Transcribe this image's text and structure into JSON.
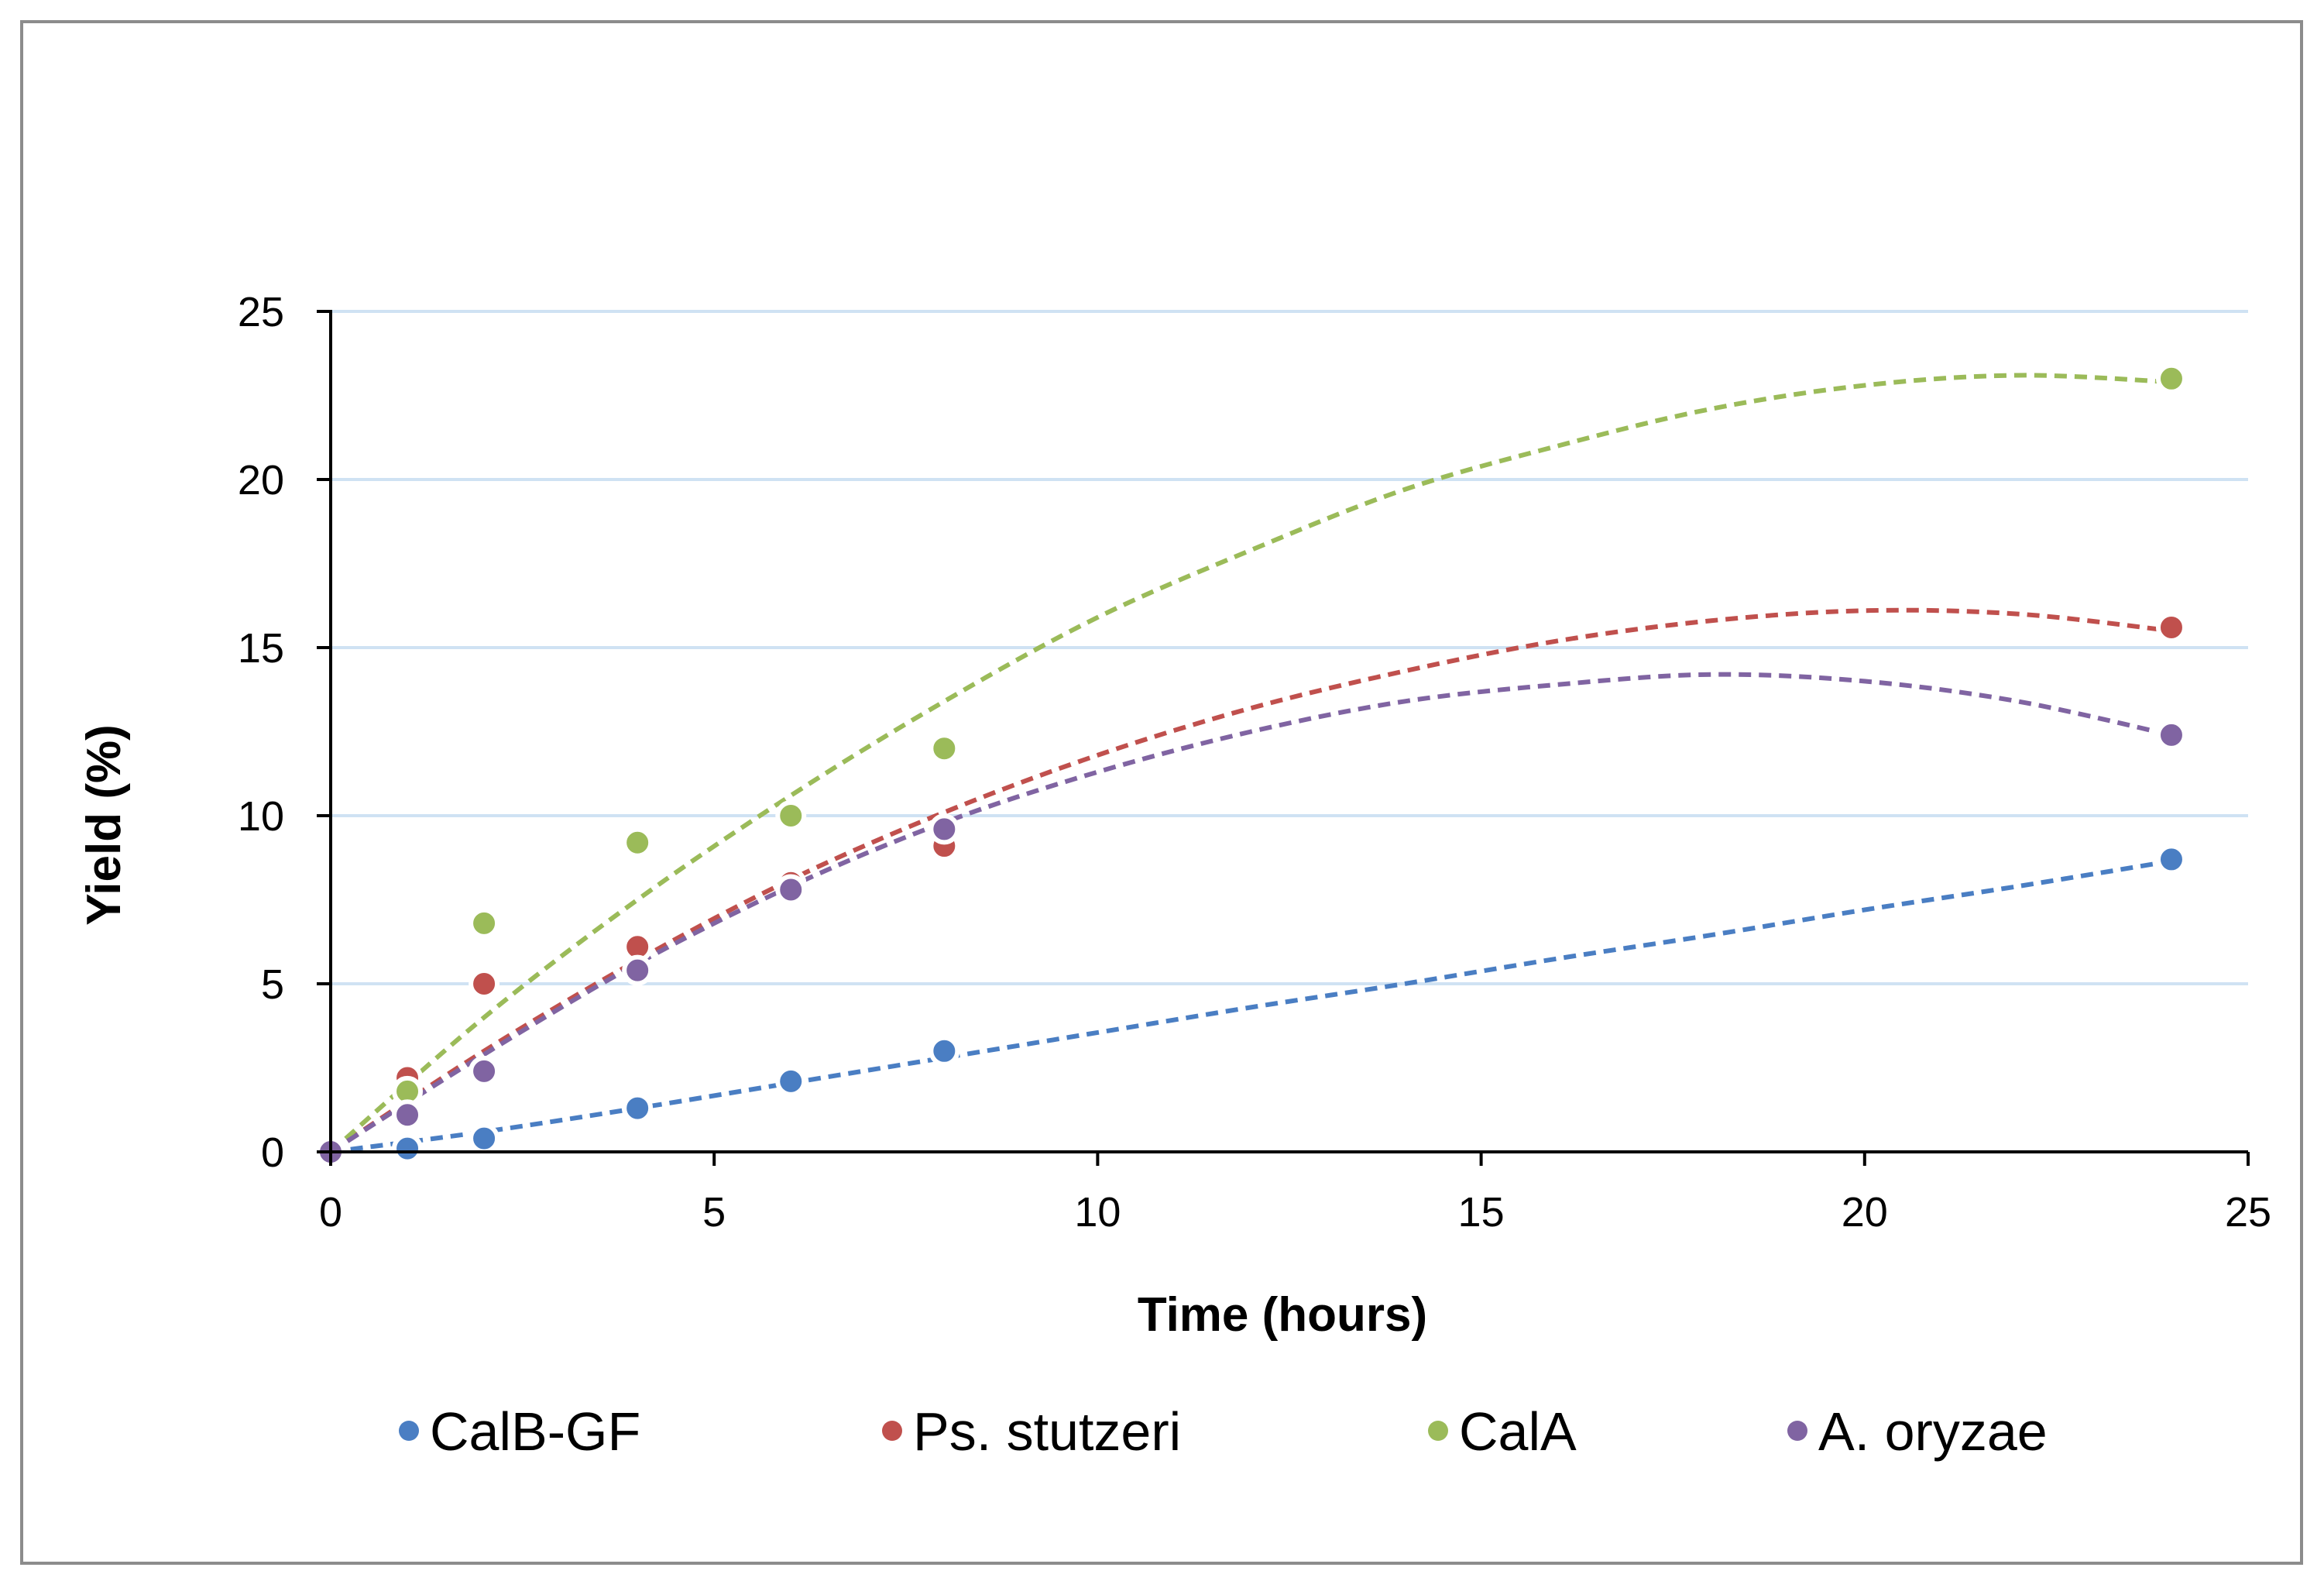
{
  "chart_data": {
    "type": "scatter",
    "title": "",
    "xlabel": "Time (hours)",
    "ylabel": "Yield (%)",
    "xlim": [
      0,
      25
    ],
    "ylim": [
      0,
      25
    ],
    "xticks": [
      0,
      5,
      10,
      15,
      20,
      25
    ],
    "yticks": [
      0,
      5,
      10,
      15,
      20,
      25
    ],
    "grid": "horizontal",
    "legend_position": "bottom",
    "series": [
      {
        "name": "CalB-GF",
        "color": "#4a7ec3",
        "x": [
          0,
          1,
          2,
          4,
          6,
          8,
          24
        ],
        "y": [
          0,
          0.1,
          0.4,
          1.3,
          2.1,
          3.0,
          8.7
        ],
        "trend": [
          [
            0,
            0
          ],
          [
            2,
            0.6
          ],
          [
            4,
            1.3
          ],
          [
            6,
            2.05
          ],
          [
            8,
            2.8
          ],
          [
            10,
            3.55
          ],
          [
            12,
            4.3
          ],
          [
            14,
            5.0
          ],
          [
            16,
            5.75
          ],
          [
            18,
            6.45
          ],
          [
            20,
            7.2
          ],
          [
            22,
            7.9
          ],
          [
            24,
            8.65
          ]
        ]
      },
      {
        "name": "Ps. stutzeri",
        "color": "#c0504d",
        "x": [
          0,
          1,
          2,
          4,
          6,
          8,
          24
        ],
        "y": [
          0,
          2.2,
          5.0,
          6.1,
          8.0,
          9.1,
          15.6
        ],
        "trend": [
          [
            0,
            0
          ],
          [
            2,
            3.0
          ],
          [
            4,
            5.7
          ],
          [
            6,
            8.1
          ],
          [
            8,
            10.1
          ],
          [
            10,
            11.8
          ],
          [
            12,
            13.2
          ],
          [
            14,
            14.3
          ],
          [
            16,
            15.2
          ],
          [
            18,
            15.8
          ],
          [
            20,
            16.1
          ],
          [
            22,
            16.0
          ],
          [
            24,
            15.5
          ]
        ]
      },
      {
        "name": "CalA",
        "color": "#9bbb59",
        "x": [
          0,
          1,
          2,
          4,
          6,
          8,
          24
        ],
        "y": [
          0,
          1.8,
          6.8,
          9.2,
          10.0,
          12.0,
          23.0
        ],
        "trend": [
          [
            0,
            0
          ],
          [
            2,
            4.0
          ],
          [
            4,
            7.5
          ],
          [
            6,
            10.6
          ],
          [
            8,
            13.4
          ],
          [
            10,
            15.9
          ],
          [
            12,
            17.9
          ],
          [
            14,
            19.7
          ],
          [
            16,
            21.0
          ],
          [
            18,
            22.1
          ],
          [
            20,
            22.8
          ],
          [
            22,
            23.1
          ],
          [
            24,
            22.9
          ]
        ]
      },
      {
        "name": "A. oryzae",
        "color": "#8064a2",
        "x": [
          0,
          1,
          2,
          4,
          6,
          8,
          24
        ],
        "y": [
          0,
          1.1,
          2.4,
          5.4,
          7.8,
          9.6,
          12.4
        ],
        "trend": [
          [
            0,
            0
          ],
          [
            2,
            2.9
          ],
          [
            4,
            5.6
          ],
          [
            6,
            7.9
          ],
          [
            8,
            9.8
          ],
          [
            10,
            11.3
          ],
          [
            12,
            12.5
          ],
          [
            14,
            13.4
          ],
          [
            16,
            13.9
          ],
          [
            18,
            14.2
          ],
          [
            20,
            14.0
          ],
          [
            22,
            13.4
          ],
          [
            24,
            12.4
          ]
        ]
      }
    ]
  }
}
